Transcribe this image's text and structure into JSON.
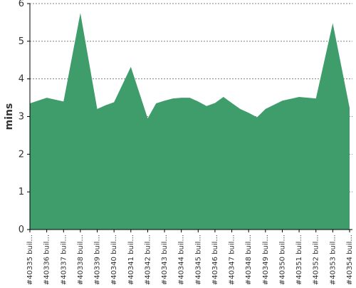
{
  "chart_data": {
    "type": "area",
    "title": "",
    "xlabel": "",
    "ylabel": "mins",
    "ylim": [
      0,
      6
    ],
    "y_ticks": [
      0,
      1,
      2,
      3,
      4,
      5,
      6
    ],
    "grid": true,
    "colors": {
      "fill": "#3f9c6b",
      "grid": "#808080",
      "axis": "#000000"
    },
    "categories": [
      "#40335 buil...",
      "#40336 buil...",
      "#40337 buil...",
      "#40338 buil...",
      "#40339 buil...",
      "#40340 buil...",
      "#40341 buil...",
      "#40342 buil...",
      "#40343 buil...",
      "#40344 buil...",
      "#40345 buil...",
      "#40346 buil...",
      "#40347 buil...",
      "#40348 buil...",
      "#40349 buil...",
      "#40350 buil...",
      "#40351 buil...",
      "#40352 buil...",
      "#40353 buil...",
      "#40354 buil..."
    ],
    "x": [
      0,
      1,
      2,
      3,
      4,
      4.5,
      5,
      6,
      7,
      7.5,
      8,
      8.5,
      9,
      9.5,
      10,
      10.5,
      11,
      11.5,
      12,
      12.5,
      13,
      13.5,
      14,
      15,
      16,
      17,
      18,
      19
    ],
    "values": [
      3.35,
      3.5,
      3.4,
      5.75,
      3.2,
      3.3,
      3.38,
      4.32,
      2.95,
      3.35,
      3.42,
      3.48,
      3.5,
      3.5,
      3.4,
      3.28,
      3.36,
      3.52,
      3.36,
      3.2,
      3.1,
      2.98,
      3.2,
      3.42,
      3.52,
      3.48,
      5.48,
      3.23
    ]
  }
}
